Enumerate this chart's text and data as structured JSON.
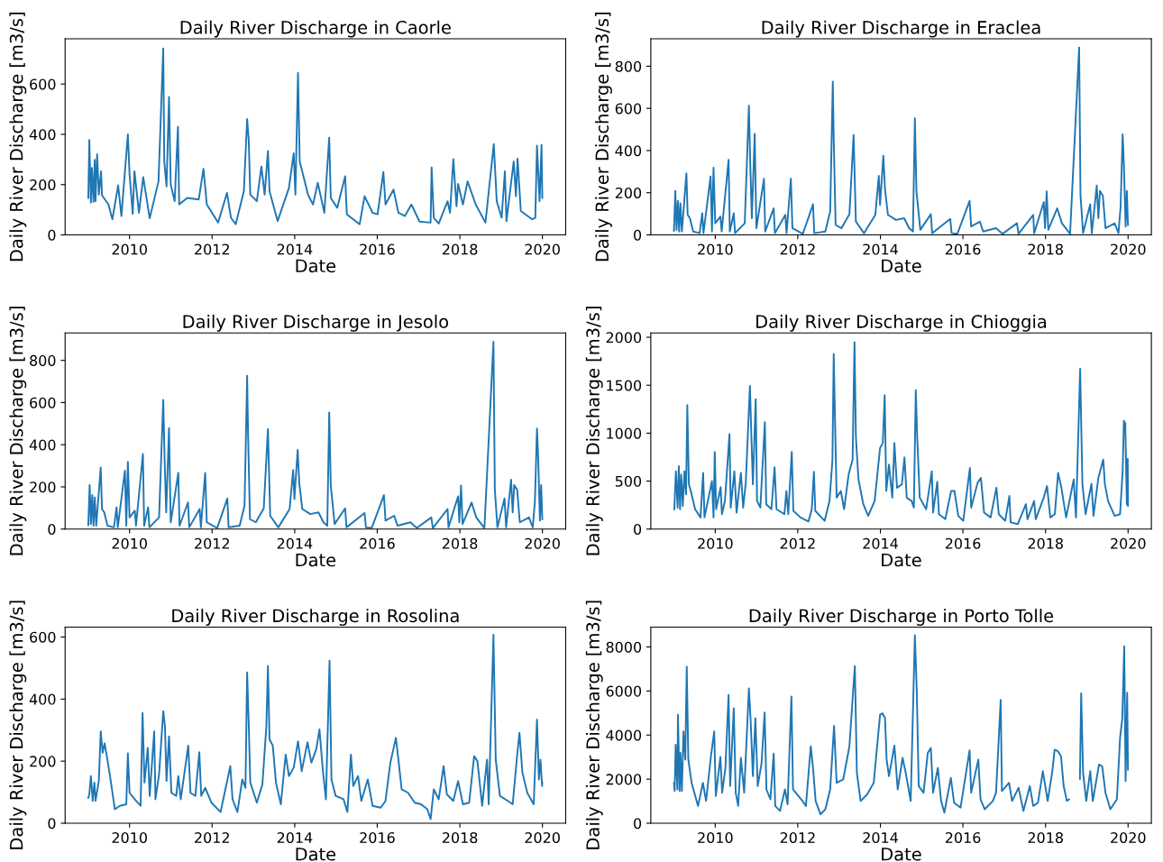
{
  "chart_data": [
    {
      "type": "line",
      "title": "Daily River Discharge in Caorle",
      "xlabel": "Date",
      "ylabel": "Daily River Discharge [m3/s]",
      "color": "#1f77b4",
      "xlim": [
        "2008-06-10",
        "2020-07-25"
      ],
      "ylim": [
        0,
        780
      ],
      "yticks": [
        0,
        200,
        400,
        600
      ],
      "xticks": [
        {
          "value": "2010-01-01",
          "label": "2010"
        },
        {
          "value": "2012-01-01",
          "label": "2012"
        },
        {
          "value": "2014-01-01",
          "label": "2014"
        },
        {
          "value": "2016-01-01",
          "label": "2016"
        },
        {
          "value": "2018-01-01",
          "label": "2018"
        },
        {
          "value": "2020-01-01",
          "label": "2020"
        }
      ],
      "x": [
        "2009-01-01",
        "2009-01-10",
        "2009-01-24",
        "2009-02-02",
        "2009-02-16",
        "2009-02-27",
        "2009-03-06",
        "2009-03-20",
        "2009-04-04",
        "2009-04-24",
        "2009-05-02",
        "2009-06-28",
        "2009-08-02",
        "2009-09-22",
        "2009-10-21",
        "2009-12-17",
        "2010-01-01",
        "2010-01-29",
        "2010-02-13",
        "2010-03-25",
        "2010-05-02",
        "2010-06-28",
        "2010-09-14",
        "2010-10-26",
        "2010-11-04",
        "2010-11-24",
        "2010-12-16",
        "2010-12-31",
        "2011-02-04",
        "2011-03-05",
        "2011-03-16",
        "2011-05-26",
        "2011-09-05",
        "2011-10-17",
        "2011-11-15",
        "2012-02-23",
        "2012-05-12",
        "2012-06-16",
        "2012-07-28",
        "2012-10-08",
        "2012-11-06",
        "2012-11-20",
        "2012-12-04",
        "2013-01-31",
        "2013-03-12",
        "2013-04-10",
        "2013-05-09",
        "2013-05-23",
        "2013-08-03",
        "2013-11-11",
        "2013-12-23",
        "2014-01-07",
        "2014-01-30",
        "2014-02-14",
        "2014-04-30",
        "2014-06-12",
        "2014-07-24",
        "2014-09-20",
        "2014-11-02",
        "2014-11-16",
        "2015-01-12",
        "2015-03-23",
        "2015-04-07",
        "2015-07-29",
        "2015-09-11",
        "2015-11-21",
        "2016-01-04",
        "2016-02-24",
        "2016-03-14",
        "2016-05-24",
        "2016-07-06",
        "2016-09-02",
        "2016-10-29",
        "2017-01-09",
        "2017-04-17",
        "2017-04-26",
        "2017-05-15",
        "2017-06-28",
        "2017-09-14",
        "2017-10-06",
        "2017-11-04",
        "2017-12-02",
        "2017-12-16",
        "2018-01-28",
        "2018-03-10",
        "2018-05-21",
        "2018-08-15",
        "2018-10-28",
        "2018-11-23",
        "2019-01-05",
        "2019-02-03",
        "2019-02-17",
        "2019-04-22",
        "2019-05-12",
        "2019-05-26",
        "2019-06-24",
        "2019-10-02",
        "2019-10-30",
        "2019-11-14",
        "2019-12-07",
        "2019-12-24",
        "2019-12-31"
      ],
      "values": [
        147,
        378,
        128,
        266,
        132,
        299,
        134,
        321,
        160,
        253,
        158,
        121,
        62,
        197,
        75,
        400,
        240,
        84,
        253,
        88,
        230,
        66,
        213,
        742,
        292,
        193,
        549,
        200,
        134,
        430,
        121,
        147,
        141,
        263,
        121,
        49,
        167,
        68,
        42,
        174,
        461,
        378,
        160,
        134,
        272,
        160,
        334,
        174,
        55,
        187,
        325,
        160,
        645,
        292,
        158,
        121,
        207,
        88,
        387,
        147,
        108,
        233,
        82,
        42,
        154,
        88,
        82,
        250,
        121,
        180,
        88,
        75,
        121,
        53,
        49,
        268,
        68,
        45,
        134,
        88,
        301,
        114,
        203,
        121,
        213,
        121,
        49,
        361,
        134,
        68,
        253,
        55,
        292,
        154,
        303,
        95,
        62,
        68,
        355,
        134,
        358,
        147
      ]
    },
    {
      "type": "line",
      "title": "Daily River Discharge in Eraclea",
      "xlabel": "Date",
      "ylabel": "Daily River Discharge [m3/s]",
      "color": "#1f77b4",
      "xlim": [
        "2008-06-10",
        "2020-07-25"
      ],
      "ylim": [
        0,
        930
      ],
      "yticks": [
        0,
        200,
        400,
        600,
        800
      ],
      "xticks": [
        {
          "value": "2010-01-01",
          "label": "2010"
        },
        {
          "value": "2012-01-01",
          "label": "2012"
        },
        {
          "value": "2014-01-01",
          "label": "2014"
        },
        {
          "value": "2016-01-01",
          "label": "2016"
        },
        {
          "value": "2018-01-01",
          "label": "2018"
        },
        {
          "value": "2020-01-01",
          "label": "2020"
        }
      ],
      "x": [
        "2009-01-01",
        "2009-01-13",
        "2009-01-24",
        "2009-02-05",
        "2009-02-16",
        "2009-02-27",
        "2009-03-12",
        "2009-04-21",
        "2009-05-02",
        "2009-05-22",
        "2009-06-20",
        "2009-08-16",
        "2009-09-08",
        "2009-09-19",
        "2009-11-21",
        "2009-12-03",
        "2009-12-17",
        "2010-01-01",
        "2010-02-16",
        "2010-02-27",
        "2010-04-29",
        "2010-05-10",
        "2010-06-14",
        "2010-06-25",
        "2010-09-19",
        "2010-10-26",
        "2010-11-07",
        "2010-11-21",
        "2010-12-16",
        "2010-12-31",
        "2011-03-08",
        "2011-03-19",
        "2011-06-02",
        "2011-06-13",
        "2011-09-13",
        "2011-09-24",
        "2011-11-01",
        "2011-11-15",
        "2012-02-15",
        "2012-05-15",
        "2012-05-26",
        "2012-09-01",
        "2012-10-14",
        "2012-11-06",
        "2012-11-14",
        "2012-12-01",
        "2013-01-22",
        "2013-04-02",
        "2013-05-09",
        "2013-05-29",
        "2013-08-09",
        "2013-11-17",
        "2013-12-18",
        "2013-12-29",
        "2014-01-27",
        "2014-02-11",
        "2014-03-09",
        "2014-05-19",
        "2014-07-30",
        "2014-09-12",
        "2014-10-16",
        "2014-11-02",
        "2014-11-16",
        "2014-12-20",
        "2015-03-23",
        "2015-04-04",
        "2015-09-11",
        "2015-09-23",
        "2015-11-13",
        "2016-02-29",
        "2016-03-14",
        "2016-05-30",
        "2016-06-28",
        "2016-10-20",
        "2016-12-16",
        "2017-04-23",
        "2017-05-07",
        "2017-09-14",
        "2017-09-22",
        "2017-12-16",
        "2017-12-27",
        "2018-01-11",
        "2018-01-25",
        "2018-04-14",
        "2018-05-26",
        "2018-08-06",
        "2018-10-25",
        "2018-11-06",
        "2018-11-29",
        "2019-01-31",
        "2019-02-14",
        "2019-03-30",
        "2019-04-13",
        "2019-04-27",
        "2019-05-23",
        "2019-06-15",
        "2019-09-04",
        "2019-10-08",
        "2019-10-27",
        "2019-11-14",
        "2019-11-25",
        "2019-12-10",
        "2019-12-21",
        "2019-12-31"
      ],
      "values": [
        19,
        209,
        24,
        161,
        16,
        150,
        16,
        292,
        95,
        79,
        16,
        8,
        103,
        8,
        277,
        16,
        319,
        55,
        87,
        16,
        356,
        16,
        103,
        8,
        55,
        613,
        332,
        79,
        479,
        32,
        266,
        16,
        126,
        8,
        95,
        8,
        266,
        32,
        5,
        145,
        8,
        16,
        111,
        727,
        458,
        47,
        32,
        98,
        474,
        63,
        8,
        95,
        280,
        142,
        375,
        213,
        95,
        71,
        79,
        32,
        16,
        553,
        206,
        24,
        98,
        8,
        76,
        8,
        5,
        161,
        40,
        63,
        16,
        32,
        5,
        55,
        5,
        95,
        8,
        155,
        32,
        206,
        24,
        126,
        55,
        5,
        888,
        190,
        8,
        145,
        8,
        234,
        79,
        209,
        185,
        32,
        55,
        8,
        134,
        477,
        332,
        40,
        209,
        47
      ]
    },
    {
      "type": "line",
      "title": "Daily River Discharge in Jesolo",
      "xlabel": "Date",
      "ylabel": "Daily River Discharge [m3/s]",
      "color": "#1f77b4",
      "xlim": [
        "2008-06-10",
        "2020-07-25"
      ],
      "ylim": [
        0,
        930
      ],
      "yticks": [
        0,
        200,
        400,
        600,
        800
      ],
      "xticks": [
        {
          "value": "2010-01-01",
          "label": "2010"
        },
        {
          "value": "2012-01-01",
          "label": "2012"
        },
        {
          "value": "2014-01-01",
          "label": "2014"
        },
        {
          "value": "2016-01-01",
          "label": "2016"
        },
        {
          "value": "2018-01-01",
          "label": "2018"
        },
        {
          "value": "2020-01-01",
          "label": "2020"
        }
      ],
      "x": [
        "2009-01-01",
        "2009-01-13",
        "2009-01-24",
        "2009-02-05",
        "2009-02-16",
        "2009-02-27",
        "2009-03-12",
        "2009-04-21",
        "2009-05-02",
        "2009-05-22",
        "2009-06-20",
        "2009-08-16",
        "2009-09-08",
        "2009-09-19",
        "2009-11-21",
        "2009-12-03",
        "2009-12-17",
        "2010-01-01",
        "2010-02-16",
        "2010-02-27",
        "2010-04-29",
        "2010-05-10",
        "2010-06-14",
        "2010-06-25",
        "2010-09-19",
        "2010-10-26",
        "2010-11-07",
        "2010-11-21",
        "2010-12-16",
        "2010-12-31",
        "2011-03-08",
        "2011-03-19",
        "2011-06-02",
        "2011-06-13",
        "2011-09-13",
        "2011-09-24",
        "2011-11-01",
        "2011-11-15",
        "2012-02-15",
        "2012-05-15",
        "2012-05-26",
        "2012-09-01",
        "2012-10-14",
        "2012-11-06",
        "2012-11-14",
        "2012-12-01",
        "2013-01-22",
        "2013-04-02",
        "2013-05-09",
        "2013-05-29",
        "2013-08-09",
        "2013-11-17",
        "2013-12-18",
        "2013-12-29",
        "2014-01-27",
        "2014-02-11",
        "2014-03-09",
        "2014-05-19",
        "2014-07-30",
        "2014-09-12",
        "2014-10-16",
        "2014-11-02",
        "2014-11-16",
        "2014-12-20",
        "2015-03-23",
        "2015-04-04",
        "2015-09-11",
        "2015-09-23",
        "2015-11-13",
        "2016-02-29",
        "2016-03-14",
        "2016-05-30",
        "2016-06-28",
        "2016-10-20",
        "2016-12-16",
        "2017-04-23",
        "2017-05-07",
        "2017-09-14",
        "2017-09-22",
        "2017-12-16",
        "2017-12-27",
        "2018-01-11",
        "2018-01-25",
        "2018-04-14",
        "2018-05-26",
        "2018-08-06",
        "2018-10-25",
        "2018-11-06",
        "2018-11-29",
        "2019-01-31",
        "2019-02-14",
        "2019-03-30",
        "2019-04-13",
        "2019-04-27",
        "2019-05-23",
        "2019-06-15",
        "2019-09-04",
        "2019-10-08",
        "2019-10-27",
        "2019-11-14",
        "2019-11-25",
        "2019-12-10",
        "2019-12-21",
        "2019-12-31"
      ],
      "values": [
        19,
        209,
        24,
        161,
        16,
        150,
        16,
        292,
        95,
        79,
        16,
        8,
        103,
        8,
        277,
        16,
        319,
        55,
        87,
        16,
        356,
        16,
        103,
        8,
        55,
        613,
        332,
        79,
        479,
        32,
        266,
        16,
        126,
        8,
        95,
        8,
        266,
        32,
        5,
        145,
        8,
        16,
        111,
        727,
        458,
        47,
        32,
        98,
        474,
        63,
        8,
        95,
        280,
        142,
        375,
        213,
        95,
        71,
        79,
        32,
        16,
        553,
        206,
        24,
        98,
        8,
        76,
        8,
        5,
        161,
        40,
        63,
        16,
        32,
        5,
        55,
        5,
        95,
        8,
        155,
        32,
        206,
        24,
        126,
        55,
        5,
        888,
        190,
        8,
        145,
        8,
        234,
        79,
        209,
        185,
        32,
        55,
        8,
        134,
        477,
        332,
        40,
        209,
        47
      ]
    },
    {
      "type": "line",
      "title": "Daily River Discharge in Chioggia",
      "xlabel": "Date",
      "ylabel": "Daily River Discharge [m3/s]",
      "color": "#1f77b4",
      "xlim": [
        "2008-06-10",
        "2020-07-25"
      ],
      "ylim": [
        0,
        2045
      ],
      "yticks": [
        0,
        500,
        1000,
        1500,
        2000
      ],
      "xticks": [
        {
          "value": "2010-01-01",
          "label": "2010"
        },
        {
          "value": "2012-01-01",
          "label": "2012"
        },
        {
          "value": "2014-01-01",
          "label": "2014"
        },
        {
          "value": "2016-01-01",
          "label": "2016"
        },
        {
          "value": "2018-01-01",
          "label": "2018"
        },
        {
          "value": "2020-01-01",
          "label": "2020"
        }
      ],
      "x": [
        "2009-01-04",
        "2009-01-18",
        "2009-02-02",
        "2009-02-13",
        "2009-02-24",
        "2009-03-06",
        "2009-03-20",
        "2009-04-04",
        "2009-04-18",
        "2009-04-29",
        "2009-05-13",
        "2009-05-30",
        "2009-07-07",
        "2009-08-24",
        "2009-09-16",
        "2009-09-28",
        "2009-12-03",
        "2009-12-17",
        "2009-12-28",
        "2010-01-09",
        "2010-02-18",
        "2010-03-01",
        "2010-03-28",
        "2010-05-07",
        "2010-05-18",
        "2010-06-19",
        "2010-07-09",
        "2010-08-16",
        "2010-09-05",
        "2010-09-28",
        "2010-11-04",
        "2010-11-15",
        "2010-11-30",
        "2010-12-25",
        "2011-01-06",
        "2011-02-04",
        "2011-03-16",
        "2011-03-28",
        "2011-05-13",
        "2011-06-10",
        "2011-06-27",
        "2011-09-05",
        "2011-09-22",
        "2011-10-09",
        "2011-11-09",
        "2011-11-23",
        "2012-01-25",
        "2012-04-05",
        "2012-05-04",
        "2012-05-23",
        "2012-06-04",
        "2012-08-26",
        "2012-10-08",
        "2012-11-03",
        "2012-11-14",
        "2012-11-25",
        "2012-12-10",
        "2013-01-16",
        "2013-02-14",
        "2013-03-26",
        "2013-04-30",
        "2013-05-17",
        "2013-05-29",
        "2013-06-21",
        "2013-08-03",
        "2013-09-15",
        "2013-11-11",
        "2013-12-29",
        "2014-01-22",
        "2014-02-08",
        "2014-02-22",
        "2014-03-18",
        "2014-04-16",
        "2014-05-05",
        "2014-05-28",
        "2014-07-10",
        "2014-08-02",
        "2014-08-22",
        "2014-10-04",
        "2014-10-24",
        "2014-11-10",
        "2014-11-22",
        "2014-12-15",
        "2015-02-10",
        "2015-04-01",
        "2015-04-12",
        "2015-05-19",
        "2015-06-03",
        "2015-07-29",
        "2015-09-19",
        "2015-10-18",
        "2015-11-21",
        "2016-01-04",
        "2016-03-03",
        "2016-03-14",
        "2016-05-10",
        "2016-06-08",
        "2016-07-06",
        "2016-09-02",
        "2016-10-23",
        "2016-11-13",
        "2017-01-09",
        "2017-02-15",
        "2017-02-26",
        "2017-05-01",
        "2017-07-11",
        "2017-07-25",
        "2017-09-22",
        "2017-10-06",
        "2017-12-16",
        "2018-01-14",
        "2018-02-12",
        "2018-03-24",
        "2018-04-22",
        "2018-05-21",
        "2018-07-02",
        "2018-09-07",
        "2018-09-27",
        "2018-11-03",
        "2018-11-23",
        "2018-12-21",
        "2019-02-11",
        "2019-03-01",
        "2019-04-13",
        "2019-05-26",
        "2019-06-10",
        "2019-07-08",
        "2019-09-04",
        "2019-10-22",
        "2019-11-14",
        "2019-11-25",
        "2019-12-07",
        "2019-12-21",
        "2019-12-29",
        "2019-12-31"
      ],
      "values": [
        207,
        603,
        224,
        655,
        207,
        569,
        241,
        603,
        362,
        1293,
        466,
        397,
        207,
        121,
        586,
        121,
        500,
        121,
        803,
        207,
        438,
        155,
        293,
        990,
        224,
        603,
        172,
        586,
        224,
        483,
        1493,
        1034,
        466,
        1355,
        293,
        224,
        1114,
        259,
        207,
        645,
        207,
        155,
        397,
        155,
        803,
        190,
        121,
        79,
        207,
        597,
        190,
        86,
        293,
        724,
        1827,
        1172,
        328,
        397,
        207,
        569,
        724,
        1948,
        966,
        517,
        259,
        138,
        293,
        845,
        897,
        1397,
        397,
        672,
        328,
        897,
        431,
        466,
        748,
        328,
        293,
        224,
        1448,
        983,
        328,
        207,
        603,
        172,
        493,
        155,
        103,
        397,
        397,
        138,
        86,
        638,
        224,
        483,
        534,
        172,
        121,
        431,
        155,
        86,
        345,
        69,
        52,
        259,
        103,
        293,
        103,
        328,
        448,
        121,
        155,
        586,
        431,
        121,
        517,
        121,
        1672,
        466,
        155,
        472,
        138,
        534,
        724,
        466,
        293,
        138,
        155,
        603,
        1128,
        1103,
        259,
        731,
        241
      ]
    },
    {
      "type": "line",
      "title": "Daily River Discharge in Rosolina",
      "xlabel": "Date",
      "ylabel": "Daily River Discharge [m3/s]",
      "color": "#1f77b4",
      "xlim": [
        "2008-06-10",
        "2020-07-25"
      ],
      "ylim": [
        0,
        632
      ],
      "yticks": [
        0,
        200,
        400,
        600
      ],
      "xticks": [
        {
          "value": "2010-01-01",
          "label": "2010"
        },
        {
          "value": "2012-01-01",
          "label": "2012"
        },
        {
          "value": "2014-01-01",
          "label": "2014"
        },
        {
          "value": "2016-01-01",
          "label": "2016"
        },
        {
          "value": "2018-01-01",
          "label": "2018"
        },
        {
          "value": "2020-01-01",
          "label": "2020"
        }
      ],
      "x": [
        "2009-01-01",
        "2009-01-10",
        "2009-01-24",
        "2009-02-09",
        "2009-02-24",
        "2009-03-06",
        "2009-04-04",
        "2009-04-21",
        "2009-05-08",
        "2009-05-25",
        "2009-06-14",
        "2009-07-12",
        "2009-08-24",
        "2009-10-07",
        "2009-12-03",
        "2009-12-17",
        "2010-01-01",
        "2010-02-27",
        "2010-04-09",
        "2010-04-26",
        "2010-05-13",
        "2010-06-11",
        "2010-06-28",
        "2010-08-07",
        "2010-08-18",
        "2010-09-19",
        "2010-10-26",
        "2010-11-10",
        "2010-11-24",
        "2010-12-16",
        "2011-01-06",
        "2011-02-18",
        "2011-03-08",
        "2011-03-30",
        "2011-06-04",
        "2011-06-24",
        "2011-08-06",
        "2011-09-10",
        "2011-09-27",
        "2011-11-01",
        "2011-12-27",
        "2012-03-16",
        "2012-05-04",
        "2012-06-10",
        "2012-06-30",
        "2012-08-12",
        "2012-09-24",
        "2012-10-22",
        "2012-11-06",
        "2012-11-20",
        "2012-12-04",
        "2013-01-31",
        "2013-03-21",
        "2013-04-25",
        "2013-05-09",
        "2013-05-23",
        "2013-06-21",
        "2013-07-19",
        "2013-08-31",
        "2013-10-13",
        "2013-11-11",
        "2013-12-23",
        "2014-01-30",
        "2014-03-04",
        "2014-04-24",
        "2014-05-28",
        "2014-07-10",
        "2014-08-08",
        "2014-09-06",
        "2014-10-04",
        "2014-11-05",
        "2014-11-22",
        "2014-12-29",
        "2015-03-09",
        "2015-04-12",
        "2015-05-13",
        "2015-06-03",
        "2015-07-15",
        "2015-08-13",
        "2015-10-09",
        "2015-11-21",
        "2016-02-01",
        "2016-03-14",
        "2016-04-26",
        "2016-06-14",
        "2016-07-06",
        "2016-08-04",
        "2016-09-30",
        "2016-11-27",
        "2017-01-23",
        "2017-03-19",
        "2017-04-17",
        "2017-05-15",
        "2017-06-28",
        "2017-08-10",
        "2017-09-08",
        "2017-11-04",
        "2017-12-16",
        "2018-01-28",
        "2018-03-24",
        "2018-05-07",
        "2018-06-05",
        "2018-07-17",
        "2018-08-29",
        "2018-09-13",
        "2018-10-25",
        "2018-11-14",
        "2018-12-21",
        "2019-03-01",
        "2019-04-13",
        "2019-05-26",
        "2019-06-12",
        "2019-07-08",
        "2019-08-20",
        "2019-10-16",
        "2019-11-14",
        "2019-12-01",
        "2019-12-15",
        "2019-12-29",
        "2019-12-31"
      ],
      "values": [
        82,
        93,
        152,
        72,
        131,
        72,
        136,
        296,
        227,
        257,
        216,
        152,
        45,
        56,
        61,
        225,
        98,
        72,
        56,
        355,
        131,
        243,
        88,
        296,
        77,
        157,
        361,
        312,
        136,
        280,
        98,
        88,
        152,
        77,
        250,
        98,
        88,
        229,
        88,
        114,
        66,
        36,
        120,
        184,
        77,
        36,
        141,
        114,
        486,
        323,
        131,
        66,
        125,
        312,
        507,
        270,
        250,
        131,
        61,
        221,
        152,
        179,
        264,
        168,
        261,
        195,
        238,
        302,
        173,
        77,
        524,
        141,
        88,
        77,
        36,
        221,
        120,
        152,
        72,
        141,
        56,
        50,
        72,
        195,
        275,
        205,
        109,
        98,
        66,
        61,
        45,
        13,
        109,
        77,
        184,
        93,
        72,
        136,
        61,
        66,
        216,
        200,
        56,
        205,
        61,
        607,
        205,
        88,
        72,
        61,
        232,
        291,
        163,
        98,
        61,
        334,
        141,
        205,
        120,
        131
      ]
    },
    {
      "type": "line",
      "title": "Daily River Discharge in Porto Tolle",
      "xlabel": "Date",
      "ylabel": "Daily River Discharge [m3/s]",
      "color": "#1f77b4",
      "xlim": [
        "2008-06-10",
        "2020-07-25"
      ],
      "ylim": [
        0,
        8900
      ],
      "yticks": [
        0,
        2000,
        4000,
        6000,
        8000
      ],
      "xticks": [
        {
          "value": "2010-01-01",
          "label": "2010"
        },
        {
          "value": "2012-01-01",
          "label": "2012"
        },
        {
          "value": "2014-01-01",
          "label": "2014"
        },
        {
          "value": "2016-01-01",
          "label": "2016"
        },
        {
          "value": "2018-01-01",
          "label": "2018"
        },
        {
          "value": "2020-01-01",
          "label": "2020"
        }
      ],
      "x": [
        "2009-01-01",
        "2009-01-07",
        "2009-01-16",
        "2009-01-31",
        "2009-02-05",
        "2009-02-20",
        "2009-02-27",
        "2009-03-12",
        "2009-03-26",
        "2009-04-11",
        "2009-04-24",
        "2009-05-08",
        "2009-06-06",
        "2009-08-02",
        "2009-09-14",
        "2009-10-12",
        "2009-11-24",
        "2009-12-23",
        "2010-01-06",
        "2010-02-16",
        "2010-03-03",
        "2010-04-01",
        "2010-04-29",
        "2010-05-13",
        "2010-06-14",
        "2010-07-01",
        "2010-07-23",
        "2010-08-16",
        "2010-09-14",
        "2010-10-26",
        "2010-11-10",
        "2010-11-30",
        "2010-12-22",
        "2011-01-12",
        "2011-02-15",
        "2011-03-14",
        "2011-03-30",
        "2011-05-04",
        "2011-06-02",
        "2011-06-16",
        "2011-07-28",
        "2011-09-10",
        "2011-10-03",
        "2011-11-06",
        "2011-11-20",
        "2012-02-01",
        "2012-03-13",
        "2012-04-25",
        "2012-05-15",
        "2012-06-07",
        "2012-07-20",
        "2012-09-01",
        "2012-10-14",
        "2012-11-17",
        "2012-12-10",
        "2013-02-06",
        "2013-04-02",
        "2013-04-30",
        "2013-05-20",
        "2013-06-07",
        "2013-07-10",
        "2013-09-06",
        "2013-11-03",
        "2013-12-29",
        "2014-01-19",
        "2014-02-11",
        "2014-02-25",
        "2014-03-18",
        "2014-05-05",
        "2014-06-03",
        "2014-07-16",
        "2014-08-13",
        "2014-09-26",
        "2014-11-02",
        "2014-11-19",
        "2014-12-06",
        "2015-01-18",
        "2015-02-24",
        "2015-03-23",
        "2015-04-12",
        "2015-05-24",
        "2015-06-22",
        "2015-07-21",
        "2015-09-16",
        "2015-10-15",
        "2015-12-11",
        "2016-02-29",
        "2016-03-14",
        "2016-05-16",
        "2016-06-05",
        "2016-07-12",
        "2016-09-22",
        "2016-10-20",
        "2016-11-30",
        "2016-12-11",
        "2017-02-12",
        "2017-03-11",
        "2017-05-07",
        "2017-06-19",
        "2017-08-15",
        "2017-09-14",
        "2017-10-26",
        "2017-12-08",
        "2018-01-20",
        "2018-03-02",
        "2018-03-22",
        "2018-04-20",
        "2018-05-18",
        "2018-06-10",
        "2018-07-09",
        "2018-07-28",
        "2018-08-15",
        "2018-11-01",
        "2018-11-12",
        "2018-11-29",
        "2018-12-27",
        "2019-01-31",
        "2019-02-23",
        "2019-04-19",
        "2019-05-17",
        "2019-06-15",
        "2019-07-28",
        "2019-09-24",
        "2019-10-22",
        "2019-11-11",
        "2019-11-28",
        "2019-12-10",
        "2019-12-24",
        "2019-12-31"
      ],
      "values": [
        1835,
        1459,
        3564,
        1534,
        4918,
        1459,
        3188,
        1459,
        4166,
        2888,
        7099,
        2888,
        1835,
        782,
        1835,
        1008,
        3038,
        4166,
        1233,
        3008,
        1384,
        2512,
        5820,
        1684,
        5219,
        1384,
        782,
        2963,
        1384,
        6121,
        4692,
        2136,
        4768,
        1684,
        2737,
        5023,
        1534,
        1083,
        3158,
        782,
        556,
        1534,
        857,
        5745,
        1534,
        1083,
        782,
        3489,
        2512,
        1008,
        406,
        632,
        1534,
        4422,
        1835,
        1985,
        3489,
        5625,
        7129,
        2286,
        1008,
        1308,
        1835,
        4918,
        4993,
        4768,
        2888,
        2136,
        3519,
        1534,
        2963,
        2286,
        1008,
        8528,
        5971,
        1684,
        1384,
        3188,
        3414,
        1384,
        2512,
        1008,
        481,
        2060,
        932,
        707,
        3309,
        1384,
        2888,
        1083,
        632,
        1008,
        1384,
        5595,
        1459,
        1835,
        1008,
        1609,
        556,
        1684,
        782,
        932,
        2361,
        1008,
        2361,
        3339,
        3264,
        3038,
        1684,
        1008,
        1083,
        null,
        2015,
        5896,
        2286,
        1008,
        2361,
        1008,
        2662,
        2587,
        1384,
        632,
        1083,
        3865,
        4768,
        8031,
        1910,
        5926,
        2436
      ]
    }
  ]
}
